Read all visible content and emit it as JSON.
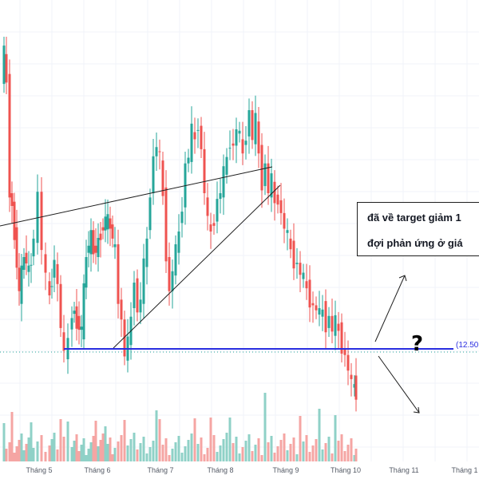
{
  "chart_data": {
    "type": "candlestick",
    "title": "",
    "xlabel": "",
    "ylabel": "",
    "x_tick_labels": [
      "Tháng 5",
      "Tháng 6",
      "Tháng 7",
      "Tháng 8",
      "Tháng 9",
      "Tháng 10",
      "Tháng 11",
      "Tháng 1"
    ],
    "support_level": 12.5,
    "support_level_label": "(12.50",
    "ylim": [
      11.4,
      24
    ],
    "annotation": {
      "line1": "đã về target giảm 1",
      "line2": "đợi phản ứng ở giá"
    },
    "question_mark": "?",
    "colors": {
      "up": "#26a69a",
      "down": "#ef5350",
      "up_volume": "#8fd1c7",
      "down_volume": "#f5a5a3",
      "support": "#2a2ee0",
      "trendline": "#1f1f1f"
    },
    "pattern": "rising wedge",
    "candles_close_path": [
      [
        0,
        21.2
      ],
      [
        5,
        21.8
      ],
      [
        8,
        21.0
      ],
      [
        12,
        18.0
      ],
      [
        18,
        16.8
      ],
      [
        24,
        15.0
      ],
      [
        30,
        16.2
      ],
      [
        36,
        15.6
      ],
      [
        42,
        16.6
      ],
      [
        47,
        17.8
      ],
      [
        52,
        16.4
      ],
      [
        57,
        15.4
      ],
      [
        62,
        15.0
      ],
      [
        68,
        16.0
      ],
      [
        72,
        15.2
      ],
      [
        76,
        14.2
      ],
      [
        80,
        13.2
      ],
      [
        85,
        13.8
      ],
      [
        90,
        14.6
      ],
      [
        96,
        14.3
      ],
      [
        102,
        14.0
      ],
      [
        108,
        16.2
      ],
      [
        114,
        16.6
      ],
      [
        120,
        16.2
      ],
      [
        126,
        16.8
      ],
      [
        132,
        17.1
      ],
      [
        138,
        17.0
      ],
      [
        144,
        16.2
      ],
      [
        148,
        15.0
      ],
      [
        152,
        14.2
      ],
      [
        156,
        13.4
      ],
      [
        160,
        13.6
      ],
      [
        164,
        14.4
      ],
      [
        168,
        15.6
      ],
      [
        172,
        14.4
      ],
      [
        176,
        15.0
      ],
      [
        180,
        15.8
      ],
      [
        184,
        16.6
      ],
      [
        188,
        18.0
      ],
      [
        192,
        18.8
      ],
      [
        196,
        19.3
      ],
      [
        200,
        18.8
      ],
      [
        204,
        17.8
      ],
      [
        208,
        16.2
      ],
      [
        212,
        15.0
      ],
      [
        216,
        15.8
      ],
      [
        220,
        16.2
      ],
      [
        224,
        16.8
      ],
      [
        228,
        17.6
      ],
      [
        232,
        18.6
      ],
      [
        236,
        19.0
      ],
      [
        240,
        19.6
      ],
      [
        244,
        19.4
      ],
      [
        248,
        19.9
      ],
      [
        252,
        19.0
      ],
      [
        256,
        18.0
      ],
      [
        260,
        17.0
      ],
      [
        264,
        16.8
      ],
      [
        268,
        17.2
      ],
      [
        272,
        17.6
      ],
      [
        276,
        18.0
      ],
      [
        280,
        18.4
      ],
      [
        284,
        18.9
      ],
      [
        288,
        19.4
      ],
      [
        292,
        19.1
      ],
      [
        296,
        19.8
      ],
      [
        300,
        19.4
      ],
      [
        304,
        19.0
      ],
      [
        308,
        19.6
      ],
      [
        312,
        20.1
      ],
      [
        316,
        19.5
      ],
      [
        320,
        19.9
      ],
      [
        324,
        19.0
      ],
      [
        328,
        18.2
      ],
      [
        332,
        18.6
      ],
      [
        336,
        18.0
      ],
      [
        340,
        18.2
      ],
      [
        344,
        17.6
      ],
      [
        348,
        17.8
      ],
      [
        352,
        17.2
      ],
      [
        356,
        17.0
      ],
      [
        360,
        16.6
      ],
      [
        364,
        16.3
      ],
      [
        368,
        16.0
      ],
      [
        372,
        15.8
      ],
      [
        376,
        15.7
      ],
      [
        380,
        15.4
      ],
      [
        384,
        15.2
      ],
      [
        388,
        14.9
      ],
      [
        392,
        14.6
      ],
      [
        396,
        14.7
      ],
      [
        400,
        14.4
      ],
      [
        404,
        14.6
      ],
      [
        408,
        14.2
      ],
      [
        412,
        14.3
      ],
      [
        416,
        14.1
      ],
      [
        420,
        14.2
      ],
      [
        424,
        14.0
      ],
      [
        428,
        13.6
      ],
      [
        432,
        13.2
      ],
      [
        436,
        13.0
      ],
      [
        440,
        12.4
      ],
      [
        444,
        12.5
      ],
      [
        446,
        12.3
      ]
    ]
  }
}
